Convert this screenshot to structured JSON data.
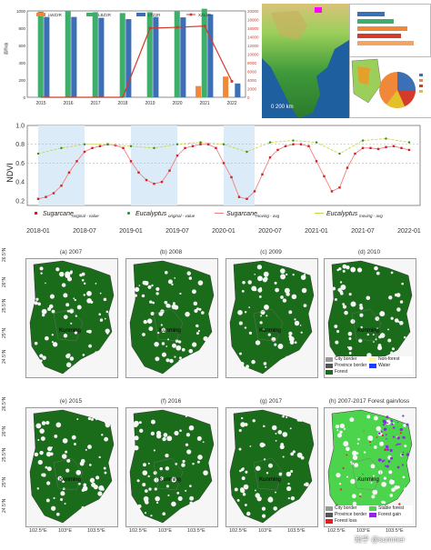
{
  "top_chart": {
    "legend": [
      "LWZ2R",
      "LBZ2R",
      "LTZ2R",
      "XZL2R"
    ],
    "years": [
      "2015",
      "2016",
      "2017",
      "2018",
      "2019",
      "2020",
      "2021",
      "2022"
    ],
    "left_ticks": [
      "0",
      "200",
      "400",
      "600",
      "800",
      "1000"
    ],
    "right_ticks": [
      "0",
      "2000",
      "4000",
      "6000",
      "8000",
      "10000",
      "12000",
      "14000",
      "16000",
      "18000",
      "20000"
    ],
    "colors": {
      "orange": "#f0883a",
      "green": "#3fae6a",
      "blue": "#3b6fb6",
      "red": "#d33b2c"
    }
  },
  "chart_data": [
    {
      "type": "bar",
      "categories": [
        "2015",
        "2016",
        "2017",
        "2018",
        "2019",
        "2020",
        "2021",
        "2022"
      ],
      "series": [
        {
          "name": "LWZ2R",
          "values": [
            0,
            0,
            0,
            0,
            0,
            0,
            130,
            240
          ]
        },
        {
          "name": "LBZ2R",
          "values": [
            990,
            995,
            985,
            975,
            985,
            995,
            1025,
            0
          ]
        },
        {
          "name": "LTZ2R",
          "values": [
            930,
            930,
            920,
            905,
            930,
            925,
            960,
            160
          ]
        },
        {
          "name": "XZL2R",
          "values": [
            0,
            0,
            0,
            0,
            16000,
            16200,
            16500,
            3700
          ]
        }
      ],
      "ylim": [
        0,
        1000
      ],
      "y2lim": [
        0,
        20000
      ]
    },
    {
      "type": "scatter",
      "ylabel": "NDVI",
      "x_ticks": [
        "2018-01",
        "2018-07",
        "2019-01",
        "2019-07",
        "2020-01",
        "2020-07",
        "2021-01",
        "2021-07",
        "2022-01"
      ],
      "y_ticks": [
        "0.2",
        "0.4",
        "0.6",
        "0.8",
        "1.0"
      ],
      "ylim": [
        0.15,
        1.0
      ],
      "shaded_periods": [
        [
          "2018-01",
          "2018-07"
        ],
        [
          "2019-01",
          "2019-07"
        ],
        [
          "2020-01",
          "2020-05"
        ]
      ],
      "series": [
        {
          "name": "Sugarcane moving-avg",
          "x": [
            "2018-01",
            "2018-02",
            "2018-03",
            "2018-04",
            "2018-05",
            "2018-06",
            "2018-07",
            "2018-08",
            "2018-09",
            "2018-10",
            "2018-11",
            "2018-12",
            "2019-01",
            "2019-02",
            "2019-03",
            "2019-04",
            "2019-05",
            "2019-06",
            "2019-07",
            "2019-08",
            "2019-09",
            "2019-10",
            "2019-11",
            "2019-12",
            "2020-01",
            "2020-02",
            "2020-03",
            "2020-04",
            "2020-05",
            "2020-06",
            "2020-07",
            "2020-08",
            "2020-09",
            "2020-10",
            "2020-11",
            "2020-12",
            "2021-01",
            "2021-02",
            "2021-03",
            "2021-04",
            "2021-05",
            "2021-06",
            "2021-07",
            "2021-08",
            "2021-09",
            "2021-10",
            "2021-11",
            "2021-12",
            "2022-01"
          ],
          "y": [
            0.22,
            0.24,
            0.28,
            0.36,
            0.5,
            0.62,
            0.72,
            0.76,
            0.78,
            0.8,
            0.79,
            0.76,
            0.62,
            0.5,
            0.42,
            0.38,
            0.4,
            0.52,
            0.68,
            0.76,
            0.78,
            0.8,
            0.8,
            0.76,
            0.6,
            0.45,
            0.24,
            0.22,
            0.3,
            0.48,
            0.66,
            0.74,
            0.78,
            0.8,
            0.8,
            0.78,
            0.62,
            0.46,
            0.3,
            0.34,
            0.55,
            0.7,
            0.76,
            0.76,
            0.75,
            0.77,
            0.78,
            0.76,
            0.74
          ]
        },
        {
          "name": "Eucalyptus moving-avg",
          "x": [
            "2018-01",
            "2018-04",
            "2018-07",
            "2018-10",
            "2019-01",
            "2019-04",
            "2019-07",
            "2019-10",
            "2020-01",
            "2020-04",
            "2020-07",
            "2020-10",
            "2021-01",
            "2021-04",
            "2021-07",
            "2021-10",
            "2022-01"
          ],
          "y": [
            0.7,
            0.76,
            0.8,
            0.8,
            0.78,
            0.76,
            0.8,
            0.82,
            0.8,
            0.72,
            0.82,
            0.84,
            0.82,
            0.7,
            0.84,
            0.86,
            0.82
          ]
        }
      ],
      "legend": [
        {
          "label": "Sugarcane",
          "subscript": "original - value"
        },
        {
          "label": "Eucalyptus",
          "subscript": "original - value"
        },
        {
          "label": "Sugarcane",
          "subscript": "moving - avg"
        },
        {
          "label": "Eucalyptus",
          "subscript": "moving - avg"
        }
      ]
    }
  ],
  "maps": {
    "panels": [
      {
        "label": "(a) 2007"
      },
      {
        "label": "(b) 2008"
      },
      {
        "label": "(c) 2009"
      },
      {
        "label": "(d) 2010"
      },
      {
        "label": "(e) 2015"
      },
      {
        "label": "(f) 2016"
      },
      {
        "label": "(g) 2017"
      },
      {
        "label": "(h) 2007-2017 Forest gain/loss"
      }
    ],
    "city_label": "Kunming",
    "lat_ticks": [
      "26.5°N",
      "26°N",
      "25.5°N",
      "25°N",
      "24.5°N"
    ],
    "lon_ticks": [
      "102.5°E",
      "103°E",
      "103.5°E"
    ],
    "legend_d": [
      "City border",
      "Non-forest",
      "Province border",
      "Water",
      "Forest"
    ],
    "legend_h": [
      "City border",
      "Stable forest",
      "Province border",
      "Forest gain",
      "Forest loss"
    ],
    "colors": {
      "forest": "#1a6b1a",
      "stable": "#4cd44c",
      "gain": "#8a2be2",
      "loss": "#e02020",
      "water": "#1e3cff",
      "nonforest": "#fff7a0"
    }
  },
  "watermark": "知乎 @summer"
}
